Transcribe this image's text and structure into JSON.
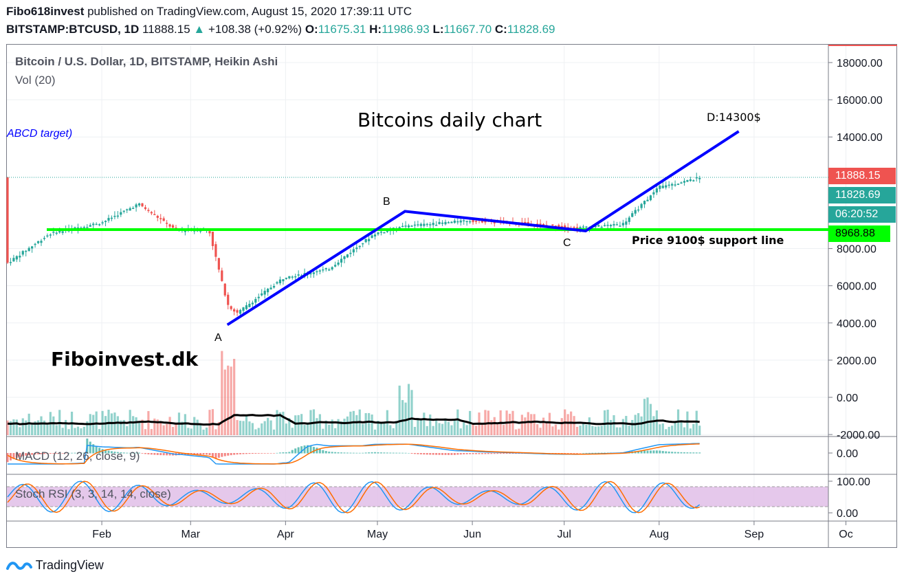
{
  "header": {
    "author": "Fibo618invest",
    "published": " published on TradingView.com, August 15, 2020 17:39:11 UTC",
    "symbol": "BITSTAMP:BTCUSD, 1D",
    "last": "11888.15",
    "change": "+108.38 (+0.92%)",
    "o_label": "O:",
    "o_value": "11675.31",
    "h_label": "H:",
    "h_value": "11986.93",
    "l_label": "L:",
    "l_value": "11667.70",
    "c_label": "C:",
    "c_value": "11828.69"
  },
  "legend": {
    "series_title": "Bitcoin / U.S. Dollar, 1D, BITSTAMP, Heikin Ashi",
    "volume": "Vol (20)",
    "macd": "MACD (12, 26, close, 9)",
    "stoch": "Stoch RSI (3, 3, 14, 14, close)"
  },
  "annotations": {
    "title": "Bitcoins daily chart",
    "abcd_target": "ABCD target)",
    "d_label": "D:14300$",
    "a": "A",
    "b": "B",
    "c": "C",
    "support": "Price 9100$ support line",
    "brand": "Fiboinvest.dk"
  },
  "price_labels": {
    "last_price": "11888.15",
    "close_price": "11828.69",
    "countdown": "06:20:52",
    "support_price": "8968.88"
  },
  "footer": {
    "brand": "TradingView"
  },
  "colors": {
    "up": "#26a69a",
    "down": "#ef5350",
    "pattern": "#0000ff",
    "support": "#00ff00",
    "rsi_band": "#e1bee7",
    "macd_line": "#2196f3",
    "signal_line": "#ff6d00",
    "volume_ma": "#000000"
  },
  "chart_data": {
    "type": "line",
    "title": "Bitcoin / U.S. Dollar, 1D, BITSTAMP, Heikin Ashi",
    "x_ticks": [
      "Feb",
      "Mar",
      "Apr",
      "May",
      "Jun",
      "Jul",
      "Aug",
      "Sep",
      "Oc"
    ],
    "price_ticks": [
      "18000.00",
      "16000.00",
      "14000.00",
      "8000.00",
      "6000.00",
      "4000.00",
      "2000.00",
      "0.00",
      "-2000.00"
    ],
    "macd_ticks": [
      "0.00"
    ],
    "stoch_ticks": [
      "100.00",
      "0.00"
    ],
    "ylim": [
      -2000,
      19000
    ],
    "grid": true,
    "price_series": [
      {
        "date": "2020-01-01",
        "close": 7200
      },
      {
        "date": "2020-01-15",
        "close": 8800
      },
      {
        "date": "2020-02-01",
        "close": 9400
      },
      {
        "date": "2020-02-13",
        "close": 10400
      },
      {
        "date": "2020-02-25",
        "close": 9000
      },
      {
        "date": "2020-03-07",
        "close": 9000
      },
      {
        "date": "2020-03-13",
        "close": 5000
      },
      {
        "date": "2020-03-16",
        "close": 4500
      },
      {
        "date": "2020-03-31",
        "close": 6400
      },
      {
        "date": "2020-04-15",
        "close": 6900
      },
      {
        "date": "2020-04-30",
        "close": 8800
      },
      {
        "date": "2020-05-10",
        "close": 9200
      },
      {
        "date": "2020-05-31",
        "close": 9500
      },
      {
        "date": "2020-06-15",
        "close": 9400
      },
      {
        "date": "2020-07-05",
        "close": 9100
      },
      {
        "date": "2020-07-20",
        "close": 9300
      },
      {
        "date": "2020-08-01",
        "close": 11300
      },
      {
        "date": "2020-08-15",
        "close": 11828.69
      }
    ],
    "abcd_pattern": [
      {
        "point": "A",
        "date": "2020-03-13",
        "price": 3900
      },
      {
        "point": "B",
        "date": "2020-05-10",
        "price": 10000
      },
      {
        "point": "C",
        "date": "2020-07-08",
        "price": 8950
      },
      {
        "point": "D",
        "date": "2020-08-27",
        "price": 14300
      }
    ],
    "support_level": 9100,
    "horizontal_line": 8968.88
  }
}
